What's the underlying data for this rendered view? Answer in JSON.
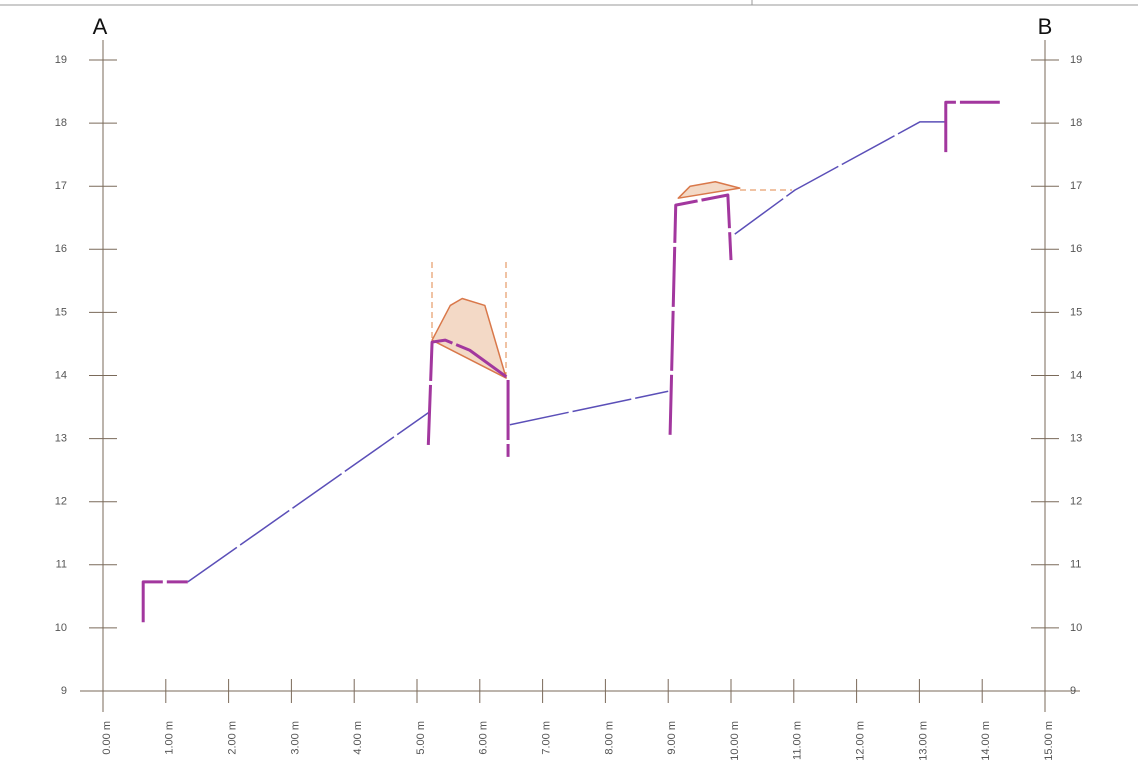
{
  "chart_data": {
    "type": "line",
    "labels": [
      "A",
      "B"
    ],
    "xlim": [
      0,
      15
    ],
    "ylim": [
      9,
      19
    ],
    "xticks": [
      {
        "value": 0,
        "label": "0.00 m"
      },
      {
        "value": 1,
        "label": "1.00 m"
      },
      {
        "value": 2,
        "label": "2.00 m"
      },
      {
        "value": 3,
        "label": "3.00 m"
      },
      {
        "value": 4,
        "label": "4.00 m"
      },
      {
        "value": 5,
        "label": "5.00 m"
      },
      {
        "value": 6,
        "label": "6.00 m"
      },
      {
        "value": 7,
        "label": "7.00 m"
      },
      {
        "value": 8,
        "label": "8.00 m"
      },
      {
        "value": 9,
        "label": "9.00 m"
      },
      {
        "value": 10,
        "label": "10.00 m"
      },
      {
        "value": 11,
        "label": "11.00 m"
      },
      {
        "value": 12,
        "label": "12.00 m"
      },
      {
        "value": 13,
        "label": "13.00 m"
      },
      {
        "value": 14,
        "label": "14.00 m"
      },
      {
        "value": 15,
        "label": "15.00 m"
      }
    ],
    "yticks": [
      9,
      10,
      11,
      12,
      13,
      14,
      15,
      16,
      17,
      18,
      19
    ],
    "series": [
      {
        "color": "#f3d9c6",
        "fill": true,
        "width": 1.5,
        "x": [
          5.24,
          5.53,
          5.72,
          6.08,
          6.42,
          null,
          9.16,
          9.35,
          9.75,
          10.14
        ],
        "values": [
          14.56,
          15.11,
          15.22,
          15.11,
          13.96,
          null,
          16.81,
          17.0,
          17.07,
          16.97
        ]
      },
      {
        "color": "#5b4fb8",
        "width": 1.5,
        "x": [
          1.35,
          5.18,
          null,
          6.48,
          9.0,
          null,
          10.06,
          11.02,
          13.01,
          13.42
        ],
        "values": [
          10.73,
          13.41,
          null,
          13.22,
          13.75,
          null,
          16.24,
          16.94,
          18.02,
          18.02
        ]
      },
      {
        "color": "#a2379e",
        "width": 3,
        "x": [
          0.64,
          0.64,
          1.35,
          null,
          5.18,
          5.24,
          5.45,
          5.84,
          6.45,
          6.45,
          null,
          9.03,
          9.12,
          9.95,
          10.0,
          null,
          13.42,
          13.42,
          14.28
        ],
        "values": [
          10.09,
          10.73,
          10.73,
          null,
          12.9,
          14.53,
          14.56,
          14.4,
          13.96,
          12.71,
          null,
          13.06,
          16.7,
          16.86,
          15.83,
          null,
          17.54,
          18.33,
          18.33
        ]
      }
    ]
  }
}
